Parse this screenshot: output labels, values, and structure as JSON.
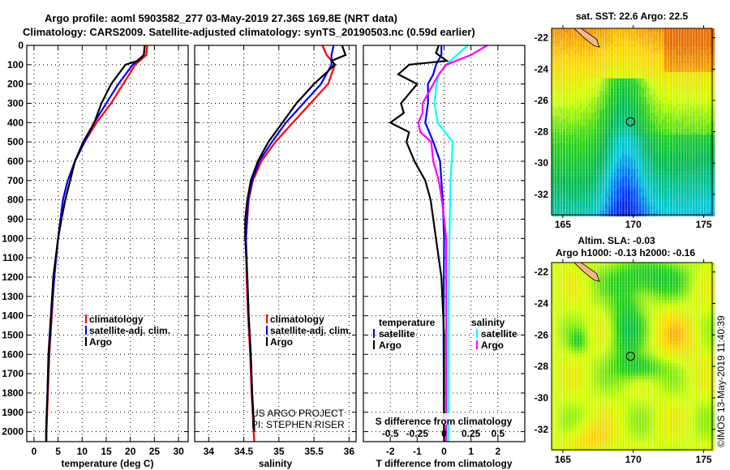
{
  "title": {
    "line1": "Argo profile: aoml 5903582_277 03-May-2019 27.36S 169.8E (NRT data)",
    "line2": "Climatology: CARS2009. Satellite-adjusted climatology: synTS_20190503.nc (0.59d earlier)"
  },
  "depth_ticks": [
    "0",
    "100",
    "200",
    "300",
    "400",
    "500",
    "600",
    "700",
    "800",
    "900",
    "1000",
    "1100",
    "1200",
    "1300",
    "1400",
    "1500",
    "1600",
    "1700",
    "1800",
    "1900",
    "2000"
  ],
  "colors": {
    "climatology": "#ff0000",
    "satellite": "#0000ff",
    "argo": "#000000",
    "sal_satellite": "#00ffff",
    "sal_argo": "#ff00ff"
  },
  "chart_data": [
    {
      "type": "line",
      "name": "temperature",
      "xlabel": "temperature (deg C)",
      "ylabel": "depth",
      "xlim": [
        -1.5,
        32
      ],
      "ylim": [
        2050,
        0
      ],
      "xticks": [
        0,
        5,
        10,
        15,
        20,
        25,
        30
      ],
      "xtick_labels": [
        "0",
        "5",
        "10",
        "15",
        "20",
        "25",
        "30"
      ],
      "grid": true,
      "legend": [
        "climatology",
        "satellite-adj. clim.",
        "Argo"
      ],
      "series": [
        {
          "name": "climatology",
          "color": "#ff0000",
          "depth": [
            0,
            50,
            100,
            150,
            200,
            300,
            400,
            500,
            600,
            700,
            800,
            1000,
            1200,
            1400,
            1600,
            1800,
            2000,
            2050
          ],
          "values": [
            23.5,
            23.3,
            21,
            19.8,
            18.5,
            16,
            13,
            10.5,
            8.5,
            7,
            6,
            5,
            4.2,
            3.7,
            3.2,
            2.9,
            2.6,
            2.6
          ]
        },
        {
          "name": "satellite-adj. clim.",
          "color": "#0000ff",
          "depth": [
            0,
            50,
            100,
            150,
            200,
            300,
            400,
            500,
            600,
            700,
            800,
            1000,
            1200,
            1400,
            1600,
            1800,
            2000
          ],
          "values": [
            23,
            22.8,
            20.5,
            19,
            17.5,
            15,
            12.5,
            10.5,
            8.5,
            7,
            6,
            5,
            4.2,
            3.6,
            3.1,
            2.8,
            2.5
          ]
        },
        {
          "name": "Argo",
          "color": "#000000",
          "depth": [
            0,
            50,
            80,
            100,
            150,
            200,
            300,
            400,
            500,
            600,
            700,
            800,
            900,
            1000,
            1100,
            1200,
            1400,
            1600,
            1800,
            2000,
            2050
          ],
          "values": [
            23,
            22.8,
            21.5,
            19,
            17.5,
            16,
            14,
            12.5,
            10.2,
            8.5,
            7.5,
            6.5,
            5.7,
            5,
            4.5,
            4,
            3.5,
            3,
            2.8,
            2.5,
            2.5
          ]
        }
      ]
    },
    {
      "type": "line",
      "name": "salinity",
      "xlabel": "salinity",
      "xlim": [
        33.8,
        36.1
      ],
      "ylim": [
        2050,
        0
      ],
      "xticks": [
        34,
        34.5,
        35,
        35.5,
        36
      ],
      "xtick_labels": [
        "34",
        "34.5",
        "35",
        "35.5",
        "36"
      ],
      "grid": true,
      "legend": [
        "climatology",
        "satellite-adj. clim.",
        "Argo"
      ],
      "annotation": [
        "US ARGO PROJECT",
        "PI: STEPHEN RISER"
      ],
      "series": [
        {
          "name": "climatology",
          "color": "#ff0000",
          "depth": [
            0,
            50,
            100,
            200,
            300,
            400,
            500,
            600,
            700,
            800,
            1000,
            1200,
            1400,
            1600,
            1800,
            2000,
            2050
          ],
          "values": [
            35.62,
            35.68,
            35.8,
            35.7,
            35.45,
            35.2,
            34.95,
            34.75,
            34.63,
            34.57,
            34.53,
            34.54,
            34.56,
            34.59,
            34.61,
            34.64,
            34.65
          ]
        },
        {
          "name": "satellite-adj. clim.",
          "color": "#0000ff",
          "depth": [
            0,
            50,
            100,
            200,
            300,
            400,
            500,
            600,
            700,
            800,
            1000,
            1200,
            1400,
            1600,
            1800,
            2000
          ],
          "values": [
            35.78,
            35.75,
            35.75,
            35.6,
            35.35,
            35.1,
            34.9,
            34.72,
            34.62,
            34.56,
            34.53,
            34.55,
            34.57,
            34.6,
            34.62,
            34.65
          ]
        },
        {
          "name": "Argo",
          "color": "#000000",
          "depth": [
            0,
            50,
            80,
            100,
            200,
            300,
            400,
            500,
            600,
            700,
            800,
            900,
            1000,
            1200,
            1400,
            1600,
            1800,
            2000
          ],
          "values": [
            35.9,
            35.95,
            35.75,
            35.8,
            35.5,
            35.25,
            35.05,
            34.85,
            34.7,
            34.6,
            34.55,
            34.52,
            34.52,
            34.55,
            34.57,
            34.6,
            34.62,
            34.65
          ]
        }
      ]
    },
    {
      "type": "line",
      "name": "difference",
      "xlabel": "T difference from climatology",
      "xlabel2": "S difference from climatology",
      "xlim": [
        -3,
        3
      ],
      "ylim": [
        2050,
        0
      ],
      "xticks": [
        -2,
        -1,
        0,
        1,
        2
      ],
      "xtick_labels": [
        "-2",
        "-1",
        "0",
        "1",
        "2"
      ],
      "s_xticks": [
        -0.5,
        -0.25,
        0,
        0.25,
        0.5
      ],
      "s_xtick_labels": [
        "-0.5",
        "-0.25",
        "0",
        "0.25",
        "0.5"
      ],
      "grid": true,
      "legend_temperature": {
        "title": "temperature",
        "items": [
          "satellite",
          "Argo"
        ]
      },
      "legend_salinity": {
        "title": "salinity",
        "items": [
          "satellite",
          "Argo"
        ]
      },
      "series": [
        {
          "name": "T satellite",
          "color": "#0000ff",
          "unit": "T",
          "depth": [
            0,
            50,
            100,
            150,
            200,
            300,
            400,
            500,
            600,
            800,
            1000,
            1500,
            2050
          ],
          "values": [
            -0.1,
            -0.1,
            -0.3,
            -0.4,
            -0.6,
            -0.6,
            -0.7,
            -0.4,
            -0.15,
            -0.05,
            0,
            -0.02,
            0
          ]
        },
        {
          "name": "T Argo",
          "color": "#000000",
          "unit": "T",
          "depth": [
            0,
            40,
            80,
            100,
            150,
            200,
            250,
            300,
            350,
            400,
            450,
            500,
            600,
            700,
            800,
            900,
            1000,
            1200,
            1500,
            2050
          ],
          "values": [
            -0.2,
            -0.3,
            0.1,
            -1.3,
            -1.7,
            -1.0,
            -1.3,
            -1.6,
            -1.5,
            -2.0,
            -1.3,
            -1.4,
            -1.1,
            -0.7,
            -0.5,
            -0.4,
            -0.3,
            -0.1,
            0,
            0
          ]
        },
        {
          "name": "S satellite",
          "color": "#00ffff",
          "unit": "S",
          "depth": [
            0,
            50,
            100,
            150,
            200,
            300,
            400,
            500,
            700,
            1000,
            1500,
            2050
          ],
          "values": [
            0.22,
            0.12,
            0.02,
            -0.05,
            -0.07,
            -0.09,
            -0.06,
            0.08,
            0.06,
            0.05,
            0.04,
            0.04
          ]
        },
        {
          "name": "S Argo",
          "color": "#ff00ff",
          "unit": "S",
          "depth": [
            0,
            50,
            100,
            150,
            200,
            300,
            350,
            400,
            450,
            500,
            600,
            700,
            800,
            900,
            1000,
            1500,
            2050
          ],
          "values": [
            0.4,
            0.25,
            0.02,
            -0.05,
            -0.1,
            -0.2,
            -0.2,
            -0.24,
            -0.22,
            -0.12,
            -0.1,
            -0.05,
            -0.02,
            0,
            0.02,
            0.02,
            0.02
          ]
        }
      ]
    }
  ],
  "maps": [
    {
      "title1": "sat. SST: 22.6 Argo: 22.5",
      "kind": "sst"
    },
    {
      "title1": "Altim. SLA: -0.03",
      "title2": "Argo h1000: -0.13 h2000: -0.16",
      "kind": "sla"
    }
  ],
  "map_axes": {
    "lat_ticks": [
      -22,
      -24,
      -26,
      -28,
      -30,
      -32
    ],
    "lat_labels": [
      "-22",
      "-24",
      "-26",
      "-28",
      "-30",
      "-32"
    ],
    "lon_ticks": [
      165,
      170,
      175
    ],
    "lon_labels": [
      "165",
      "170",
      "175"
    ],
    "lon_range": [
      164.2,
      175.6
    ],
    "lat_range": [
      -33.3,
      -21.4
    ]
  },
  "profile_location": {
    "lat": -27.36,
    "lon": 169.8
  },
  "credit": "©IMOS 13-May-2019 11:40:39"
}
